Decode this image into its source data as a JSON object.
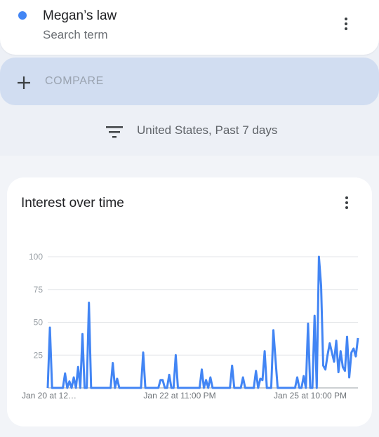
{
  "search_term": {
    "name": "Megan’s law",
    "subtitle": "Search term",
    "color": "#4285f4"
  },
  "compare": {
    "label": "COMPARE"
  },
  "filter": {
    "text": "United States, Past 7 days"
  },
  "interest_card": {
    "title": "Interest over time"
  },
  "chart_data": {
    "type": "line",
    "title": "Interest over time",
    "series": [
      {
        "name": "Megan’s law",
        "color": "#4285f4",
        "values": [
          0,
          46,
          0,
          0,
          0,
          0,
          0,
          0,
          11,
          0,
          5,
          0,
          8,
          0,
          16,
          0,
          41,
          0,
          0,
          65,
          0,
          0,
          0,
          0,
          0,
          0,
          0,
          0,
          0,
          0,
          19,
          0,
          7,
          0,
          0,
          0,
          0,
          0,
          0,
          0,
          0,
          0,
          0,
          0,
          27,
          0,
          0,
          0,
          0,
          0,
          0,
          0,
          6,
          6,
          0,
          0,
          10,
          0,
          0,
          25,
          0,
          0,
          0,
          0,
          0,
          0,
          0,
          0,
          0,
          0,
          0,
          14,
          0,
          6,
          0,
          8,
          0,
          0,
          0,
          0,
          0,
          0,
          0,
          0,
          0,
          17,
          0,
          0,
          0,
          0,
          8,
          0,
          0,
          0,
          0,
          0,
          13,
          0,
          7,
          6,
          28,
          0,
          0,
          0,
          44,
          22,
          0,
          0,
          0,
          0,
          0,
          0,
          0,
          0,
          0,
          8,
          0,
          0,
          9,
          0,
          49,
          0,
          0,
          55,
          0,
          100,
          78,
          17,
          14,
          25,
          34,
          27,
          20,
          36,
          12,
          28,
          16,
          13,
          39,
          8,
          27,
          30,
          24,
          38
        ]
      }
    ],
    "x_tick_labels": [
      "Jan 20 at 12…",
      "Jan 22 at 11:00 PM",
      "Jan 25 at 10:00 PM"
    ],
    "y_ticks": [
      100,
      75,
      50,
      25
    ],
    "ylim": [
      0,
      100
    ],
    "grid": true
  }
}
